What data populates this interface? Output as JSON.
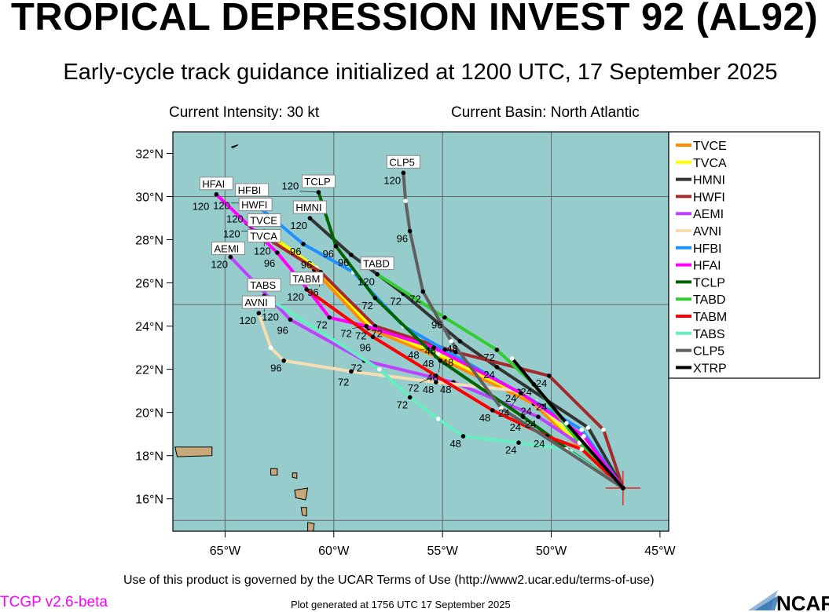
{
  "title": "TROPICAL DEPRESSION INVEST 92 (AL92)",
  "subtitle": "Early-cycle track guidance initialized at 1200 UTC, 17 September 2025",
  "current_intensity": "Current Intensity: 30 kt",
  "current_basin": "Current Basin: North Atlantic",
  "footer": {
    "terms": "Use of this product is governed by the UCAR Terms of Use (http://www2.ucar.edu/terms-of-use)",
    "version": "TCGP v2.6-beta",
    "generated": "Plot generated at 1756 UTC   17 September 2025",
    "logo": "NCAR"
  },
  "chart_data": {
    "type": "map-tracks",
    "xlim": [
      -67.4,
      -44.6
    ],
    "ylim": [
      14.5,
      33.0
    ],
    "lon_ticks": [
      {
        "v": -65,
        "label": "65°W"
      },
      {
        "v": -60,
        "label": "60°W"
      },
      {
        "v": -55,
        "label": "55°W"
      },
      {
        "v": -50,
        "label": "50°W"
      },
      {
        "v": -45,
        "label": "45°W"
      }
    ],
    "lat_ticks": [
      {
        "v": 32,
        "label": "32°N"
      },
      {
        "v": 30,
        "label": "30°N"
      },
      {
        "v": 28,
        "label": "28°N"
      },
      {
        "v": 26,
        "label": "26°N"
      },
      {
        "v": 24,
        "label": "24°N"
      },
      {
        "v": 22,
        "label": "22°N"
      },
      {
        "v": 20,
        "label": "20°N"
      },
      {
        "v": 18,
        "label": "18°N"
      },
      {
        "v": 16,
        "label": "16°N"
      }
    ],
    "grid_lon": [
      -65,
      -60,
      -55,
      -50
    ],
    "grid_lat": [
      15,
      25,
      30
    ],
    "ocean_color": "#96cccc",
    "land_color": "#c8a878",
    "legend_position": "right",
    "initial_position": [
      -46.7,
      16.5
    ],
    "series": [
      {
        "name": "TVCE",
        "color": "#ff8c00",
        "points": [
          [
            -46.7,
            16.5,
            ""
          ],
          [
            -50.8,
            20.4,
            "24"
          ],
          [
            -55.3,
            22.6,
            "48"
          ],
          [
            -58.4,
            23.9,
            "72"
          ],
          [
            -60.9,
            26.6,
            "96"
          ],
          [
            -63.2,
            28.4,
            "120"
          ]
        ]
      },
      {
        "name": "TVCA",
        "color": "#ffff00",
        "points": [
          [
            -46.7,
            16.5,
            ""
          ],
          [
            -50.7,
            20.5,
            ""
          ],
          [
            -55.2,
            22.7,
            ""
          ],
          [
            -58.3,
            24.0,
            ""
          ],
          [
            -60.8,
            26.7,
            ""
          ],
          [
            -63.2,
            28.4,
            "120"
          ]
        ]
      },
      {
        "name": "HMNI",
        "color": "#333333",
        "points": [
          [
            -46.7,
            16.5,
            ""
          ],
          [
            -48.3,
            19.3,
            ""
          ],
          [
            -52.5,
            22.1,
            "24"
          ],
          [
            -54.2,
            23.3,
            "48"
          ],
          [
            -56.8,
            25.5,
            "72"
          ],
          [
            -59.2,
            27.3,
            "96"
          ],
          [
            -61.1,
            29.0,
            "120"
          ]
        ]
      },
      {
        "name": "HWFI",
        "color": "#a52a2a",
        "points": [
          [
            -46.7,
            16.5,
            ""
          ],
          [
            -47.6,
            19.2,
            ""
          ],
          [
            -50.1,
            21.7,
            "24"
          ],
          [
            -54.4,
            22.8,
            "48"
          ],
          [
            -58.1,
            24.0,
            "72"
          ],
          [
            -60.6,
            26.5,
            "96"
          ],
          [
            -63.6,
            28.4,
            "120"
          ]
        ]
      },
      {
        "name": "AEMI",
        "color": "#bf40ff",
        "points": [
          [
            -46.7,
            16.5,
            ""
          ],
          [
            -48.2,
            18.2,
            ""
          ],
          [
            -50.6,
            19.8,
            "24"
          ],
          [
            -54.5,
            21.4,
            "48"
          ],
          [
            -58.6,
            22.4,
            "72"
          ],
          [
            -62.0,
            24.3,
            "96"
          ],
          [
            -64.75,
            27.2,
            "120"
          ]
        ]
      },
      {
        "name": "AVNI",
        "color": "#f5deb3",
        "points": [
          [
            -46.7,
            16.5,
            ""
          ],
          [
            -48.6,
            18.8,
            ""
          ],
          [
            -51.5,
            21.0,
            "24"
          ],
          [
            -55.3,
            21.4,
            "48"
          ],
          [
            -59.2,
            21.9,
            "72"
          ],
          [
            -62.3,
            22.4,
            "96"
          ],
          [
            -62.9,
            23.0,
            ""
          ],
          [
            -63.45,
            24.6,
            "120"
          ]
        ]
      },
      {
        "name": "HFBI",
        "color": "#1e90ff",
        "points": [
          [
            -46.7,
            16.5,
            ""
          ],
          [
            -48.6,
            19.2,
            ""
          ],
          [
            -50.4,
            20.3,
            "24"
          ],
          [
            -54.9,
            22.9,
            "48"
          ],
          [
            -56.8,
            24.0,
            ""
          ],
          [
            -59.1,
            26.5,
            ""
          ],
          [
            -61.4,
            27.8,
            "96"
          ],
          [
            -63.66,
            29.7,
            "120"
          ]
        ]
      },
      {
        "name": "HFAI",
        "color": "#ff00ff",
        "points": [
          [
            -46.7,
            16.5,
            ""
          ],
          [
            -48.5,
            18.9,
            ""
          ],
          [
            -51.4,
            20.9,
            "24"
          ],
          [
            -55.4,
            23.0,
            "48"
          ],
          [
            -58.5,
            24.0,
            "72"
          ],
          [
            -60.2,
            24.4,
            "72"
          ],
          [
            -61.2,
            25.7,
            ""
          ],
          [
            -62.6,
            27.4,
            "96"
          ],
          [
            -65.4,
            30.1,
            "120"
          ]
        ]
      },
      {
        "name": "TCLP",
        "color": "#006400",
        "points": [
          [
            -46.7,
            16.5,
            ""
          ],
          [
            -49.1,
            18.2,
            ""
          ],
          [
            -51.3,
            19.8,
            "24"
          ],
          [
            -55.1,
            22.4,
            "48"
          ],
          [
            -58.1,
            25.3,
            "72"
          ],
          [
            -59.9,
            27.7,
            "96"
          ],
          [
            -60.7,
            30.2,
            "120"
          ]
        ]
      },
      {
        "name": "TABD",
        "color": "#32cd32",
        "points": [
          [
            -46.7,
            16.5,
            ""
          ],
          [
            -48.7,
            18.6,
            ""
          ],
          [
            -50.8,
            21.3,
            "24"
          ],
          [
            -52.5,
            22.9,
            "72"
          ],
          [
            -54.9,
            24.4,
            "96"
          ],
          [
            -58.0,
            26.4,
            "120"
          ]
        ]
      },
      {
        "name": "TABM",
        "color": "#ff0000",
        "points": [
          [
            -46.7,
            16.5,
            ""
          ],
          [
            -48.6,
            18.3,
            ""
          ],
          [
            -50.2,
            18.9,
            "24"
          ],
          [
            -52.7,
            20.1,
            "48"
          ],
          [
            -55.3,
            21.7,
            "72"
          ],
          [
            -58.2,
            23.5,
            "96"
          ],
          [
            -61.25,
            25.7,
            "120"
          ]
        ]
      },
      {
        "name": "TABS",
        "color": "#66eec0",
        "points": [
          [
            -46.7,
            16.5,
            ""
          ],
          [
            -49.3,
            18.3,
            ""
          ],
          [
            -51.5,
            18.6,
            "24"
          ],
          [
            -54.05,
            18.9,
            "48"
          ],
          [
            -55.2,
            19.7,
            ""
          ],
          [
            -56.5,
            20.7,
            "72"
          ],
          [
            -57.9,
            22.0,
            ""
          ],
          [
            -63.2,
            25.4,
            "120"
          ]
        ]
      },
      {
        "name": "CLP5",
        "color": "#606060",
        "points": [
          [
            -46.7,
            16.5,
            ""
          ],
          [
            -52.3,
            20.2,
            ""
          ],
          [
            -54.6,
            23.3,
            ""
          ],
          [
            -55.9,
            25.6,
            "72"
          ],
          [
            -56.5,
            28.4,
            "96"
          ],
          [
            -56.7,
            29.8,
            ""
          ],
          [
            -56.8,
            31.1,
            "120"
          ]
        ]
      },
      {
        "name": "XTRP",
        "color": "#000000",
        "points": [
          [
            -46.7,
            16.5,
            ""
          ],
          [
            -49.3,
            19.5,
            ""
          ],
          [
            -51.8,
            22.5,
            ""
          ]
        ]
      }
    ]
  }
}
